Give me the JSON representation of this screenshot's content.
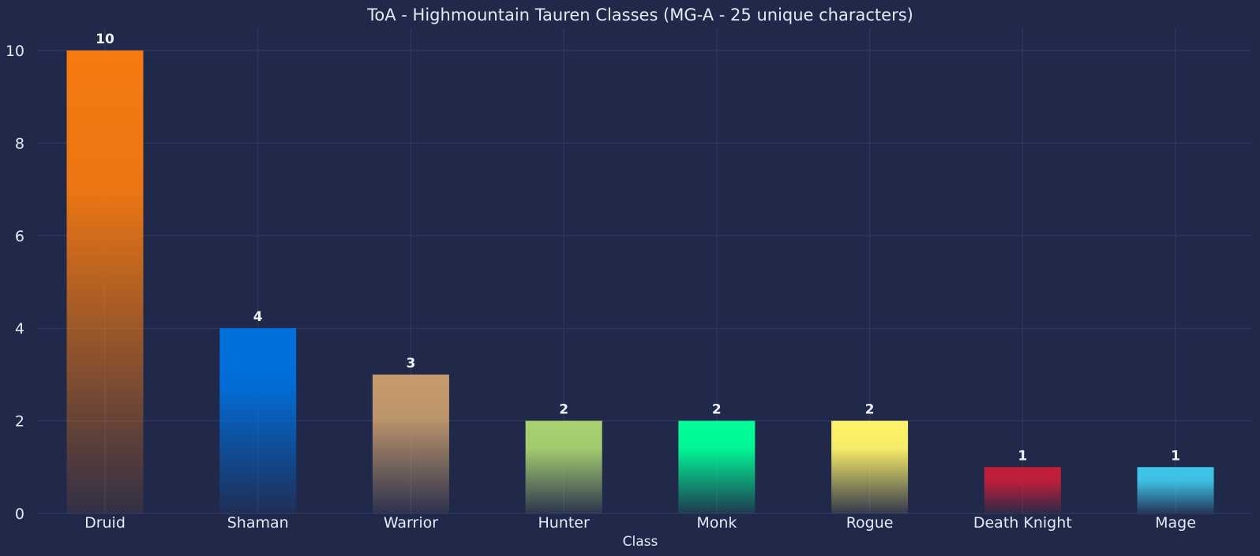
{
  "chart_data": {
    "type": "bar",
    "title": "ToA - Highmountain Tauren Classes (MG-A - 25 unique characters)",
    "xlabel": "Class",
    "ylabel": "",
    "categories": [
      "Druid",
      "Shaman",
      "Warrior",
      "Hunter",
      "Monk",
      "Rogue",
      "Death Knight",
      "Mage"
    ],
    "values": [
      10,
      4,
      3,
      2,
      2,
      2,
      1,
      1
    ],
    "colors": [
      "#f67a10",
      "#0070de",
      "#c69b6d",
      "#a9d271",
      "#00ff98",
      "#fff468",
      "#c41e3a",
      "#3fc7eb"
    ],
    "ylim": [
      0,
      10.5
    ],
    "yticks": [
      0,
      2,
      4,
      6,
      8,
      10
    ],
    "grid": true,
    "background": "#21294a"
  }
}
